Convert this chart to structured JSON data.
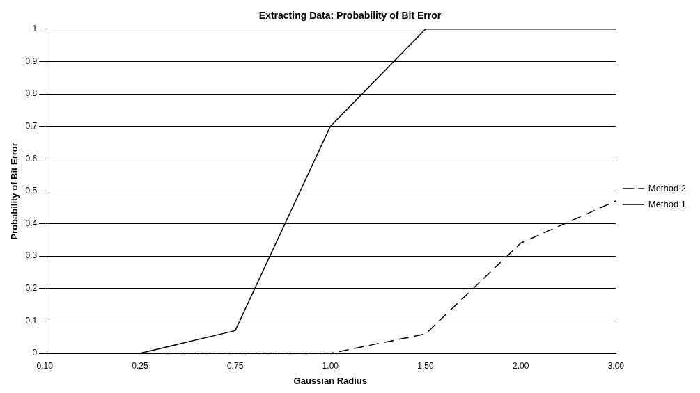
{
  "chart_data": {
    "type": "line",
    "title": "Extracting Data: Probability of Bit Error",
    "xlabel": "Gaussian Radius",
    "ylabel": "Probability of Bit Error",
    "categories": [
      "0.10",
      "0.25",
      "0.75",
      "1.00",
      "1.50",
      "2.00",
      "3.00"
    ],
    "series": [
      {
        "name": "Method 2",
        "color": "#000000",
        "line_style": "dashed",
        "values": [
          null,
          0,
          0,
          0,
          0.06,
          0.34,
          0.47
        ]
      },
      {
        "name": "Method 1",
        "color": "#000000",
        "line_style": "solid",
        "values": [
          null,
          0,
          0.07,
          0.7,
          1,
          1,
          1
        ]
      }
    ],
    "ylim": [
      0,
      1
    ],
    "yticks": [
      0,
      0.1,
      0.2,
      0.3,
      0.4,
      0.5,
      0.6,
      0.7,
      0.8,
      0.9,
      1
    ],
    "grid": "y",
    "legend": "right",
    "marker": "none"
  }
}
